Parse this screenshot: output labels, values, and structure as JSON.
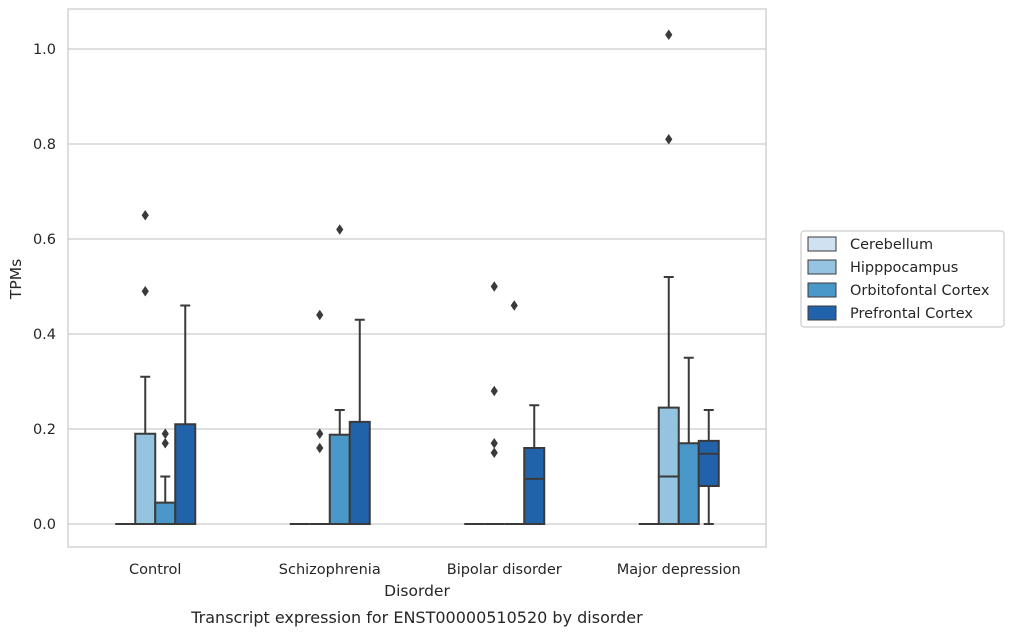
{
  "caption": "Transcript expression for ENST00000510520 by disorder",
  "chart_data": {
    "type": "box",
    "xlabel": "Disorder",
    "ylabel": "TPMs",
    "ylim": [
      -0.05,
      1.08
    ],
    "yticks": [
      "0.0",
      "0.2",
      "0.4",
      "0.6",
      "0.8",
      "1.0"
    ],
    "grid": "horizontal",
    "legend_position": "right",
    "categories": [
      "Control",
      "Schizophrenia",
      "Bipolar disorder",
      "Major depression"
    ],
    "series": [
      {
        "name": "Cerebellum",
        "color": "#d0e1f2",
        "boxes": [
          {
            "category": "Control",
            "whisker_low": 0,
            "q1": 0,
            "median": 0,
            "q3": 0,
            "whisker_high": 0,
            "outliers": []
          },
          {
            "category": "Schizophrenia",
            "whisker_low": 0,
            "q1": 0,
            "median": 0,
            "q3": 0,
            "whisker_high": 0,
            "outliers": []
          },
          {
            "category": "Bipolar disorder",
            "whisker_low": 0,
            "q1": 0,
            "median": 0,
            "q3": 0,
            "whisker_high": 0,
            "outliers": []
          },
          {
            "category": "Major depression",
            "whisker_low": 0,
            "q1": 0,
            "median": 0,
            "q3": 0,
            "whisker_high": 0,
            "outliers": []
          }
        ]
      },
      {
        "name": "Hipppocampus",
        "color": "#94c4df",
        "boxes": [
          {
            "category": "Control",
            "whisker_low": 0,
            "q1": 0,
            "median": 0,
            "q3": 0.19,
            "whisker_high": 0.31,
            "outliers": [
              0.49,
              0.65
            ]
          },
          {
            "category": "Schizophrenia",
            "whisker_low": 0,
            "q1": 0,
            "median": 0,
            "q3": 0,
            "whisker_high": 0,
            "outliers": [
              0.16,
              0.19,
              0.44
            ]
          },
          {
            "category": "Bipolar disorder",
            "whisker_low": 0,
            "q1": 0,
            "median": 0,
            "q3": 0,
            "whisker_high": 0,
            "outliers": [
              0.15,
              0.17,
              0.28,
              0.5
            ]
          },
          {
            "category": "Major depression",
            "whisker_low": 0,
            "q1": 0,
            "median": 0.1,
            "q3": 0.245,
            "whisker_high": 0.52,
            "outliers": [
              0.81,
              1.03
            ]
          }
        ]
      },
      {
        "name": "Orbitofontal Cortex",
        "color": "#4a98c9",
        "boxes": [
          {
            "category": "Control",
            "whisker_low": 0,
            "q1": 0,
            "median": 0,
            "q3": 0.045,
            "whisker_high": 0.1,
            "outliers": [
              0.17,
              0.19
            ]
          },
          {
            "category": "Schizophrenia",
            "whisker_low": 0,
            "q1": 0,
            "median": 0,
            "q3": 0.188,
            "whisker_high": 0.24,
            "outliers": [
              0.62
            ]
          },
          {
            "category": "Bipolar disorder",
            "whisker_low": 0,
            "q1": 0,
            "median": 0,
            "q3": 0,
            "whisker_high": 0,
            "outliers": [
              0.46
            ]
          },
          {
            "category": "Major depression",
            "whisker_low": 0,
            "q1": 0,
            "median": 0,
            "q3": 0.17,
            "whisker_high": 0.35,
            "outliers": []
          }
        ]
      },
      {
        "name": "Prefrontal Cortex",
        "color": "#2163aa",
        "boxes": [
          {
            "category": "Control",
            "whisker_low": 0,
            "q1": 0,
            "median": 0,
            "q3": 0.21,
            "whisker_high": 0.46,
            "outliers": []
          },
          {
            "category": "Schizophrenia",
            "whisker_low": 0,
            "q1": 0,
            "median": 0,
            "q3": 0.215,
            "whisker_high": 0.43,
            "outliers": []
          },
          {
            "category": "Bipolar disorder",
            "whisker_low": 0,
            "q1": 0,
            "median": 0.095,
            "q3": 0.16,
            "whisker_high": 0.25,
            "outliers": []
          },
          {
            "category": "Major depression",
            "whisker_low": 0,
            "q1": 0.08,
            "median": 0.148,
            "q3": 0.175,
            "whisker_high": 0.24,
            "outliers": []
          }
        ]
      }
    ]
  }
}
